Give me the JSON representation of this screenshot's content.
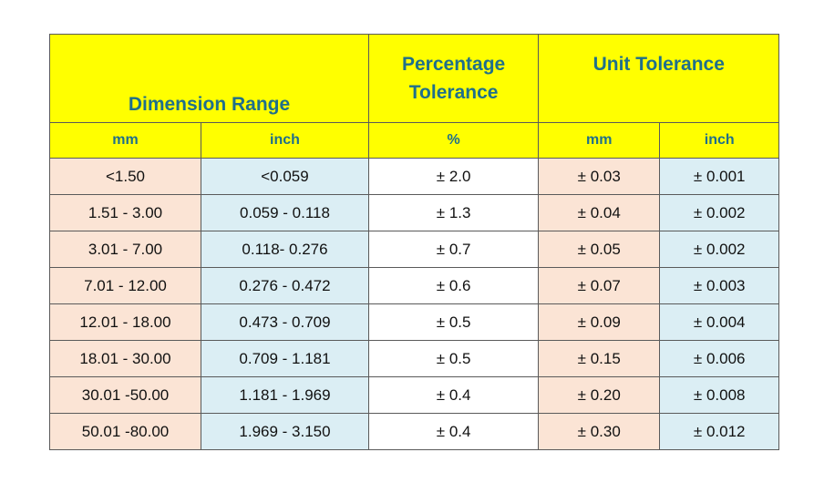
{
  "table": {
    "header": {
      "dimension_range": "Dimension Range",
      "percentage_tolerance": "Percentage Tolerance",
      "unit_tolerance": "Unit Tolerance"
    },
    "subheaders": [
      "mm",
      "inch",
      "%",
      "mm",
      "inch"
    ],
    "rows": [
      [
        "<1.50",
        "<0.059",
        "± 2.0",
        "± 0.03",
        "± 0.001"
      ],
      [
        "1.51 - 3.00",
        "0.059 - 0.118",
        "± 1.3",
        "± 0.04",
        "± 0.002"
      ],
      [
        "3.01 - 7.00",
        "0.118- 0.276",
        "± 0.7",
        "± 0.05",
        "± 0.002"
      ],
      [
        "7.01 - 12.00",
        "0.276 - 0.472",
        "± 0.6",
        "± 0.07",
        "± 0.003"
      ],
      [
        "12.01 - 18.00",
        "0.473 - 0.709",
        "± 0.5",
        "± 0.09",
        "± 0.004"
      ],
      [
        "18.01 - 30.00",
        "0.709 - 1.181",
        "± 0.5",
        "± 0.15",
        "± 0.006"
      ],
      [
        "30.01 -50.00",
        "1.181 - 1.969",
        "± 0.4",
        "± 0.20",
        "± 0.008"
      ],
      [
        "50.01 -80.00",
        "1.969 - 3.150",
        "± 0.4",
        "± 0.30",
        "± 0.012"
      ]
    ]
  }
}
